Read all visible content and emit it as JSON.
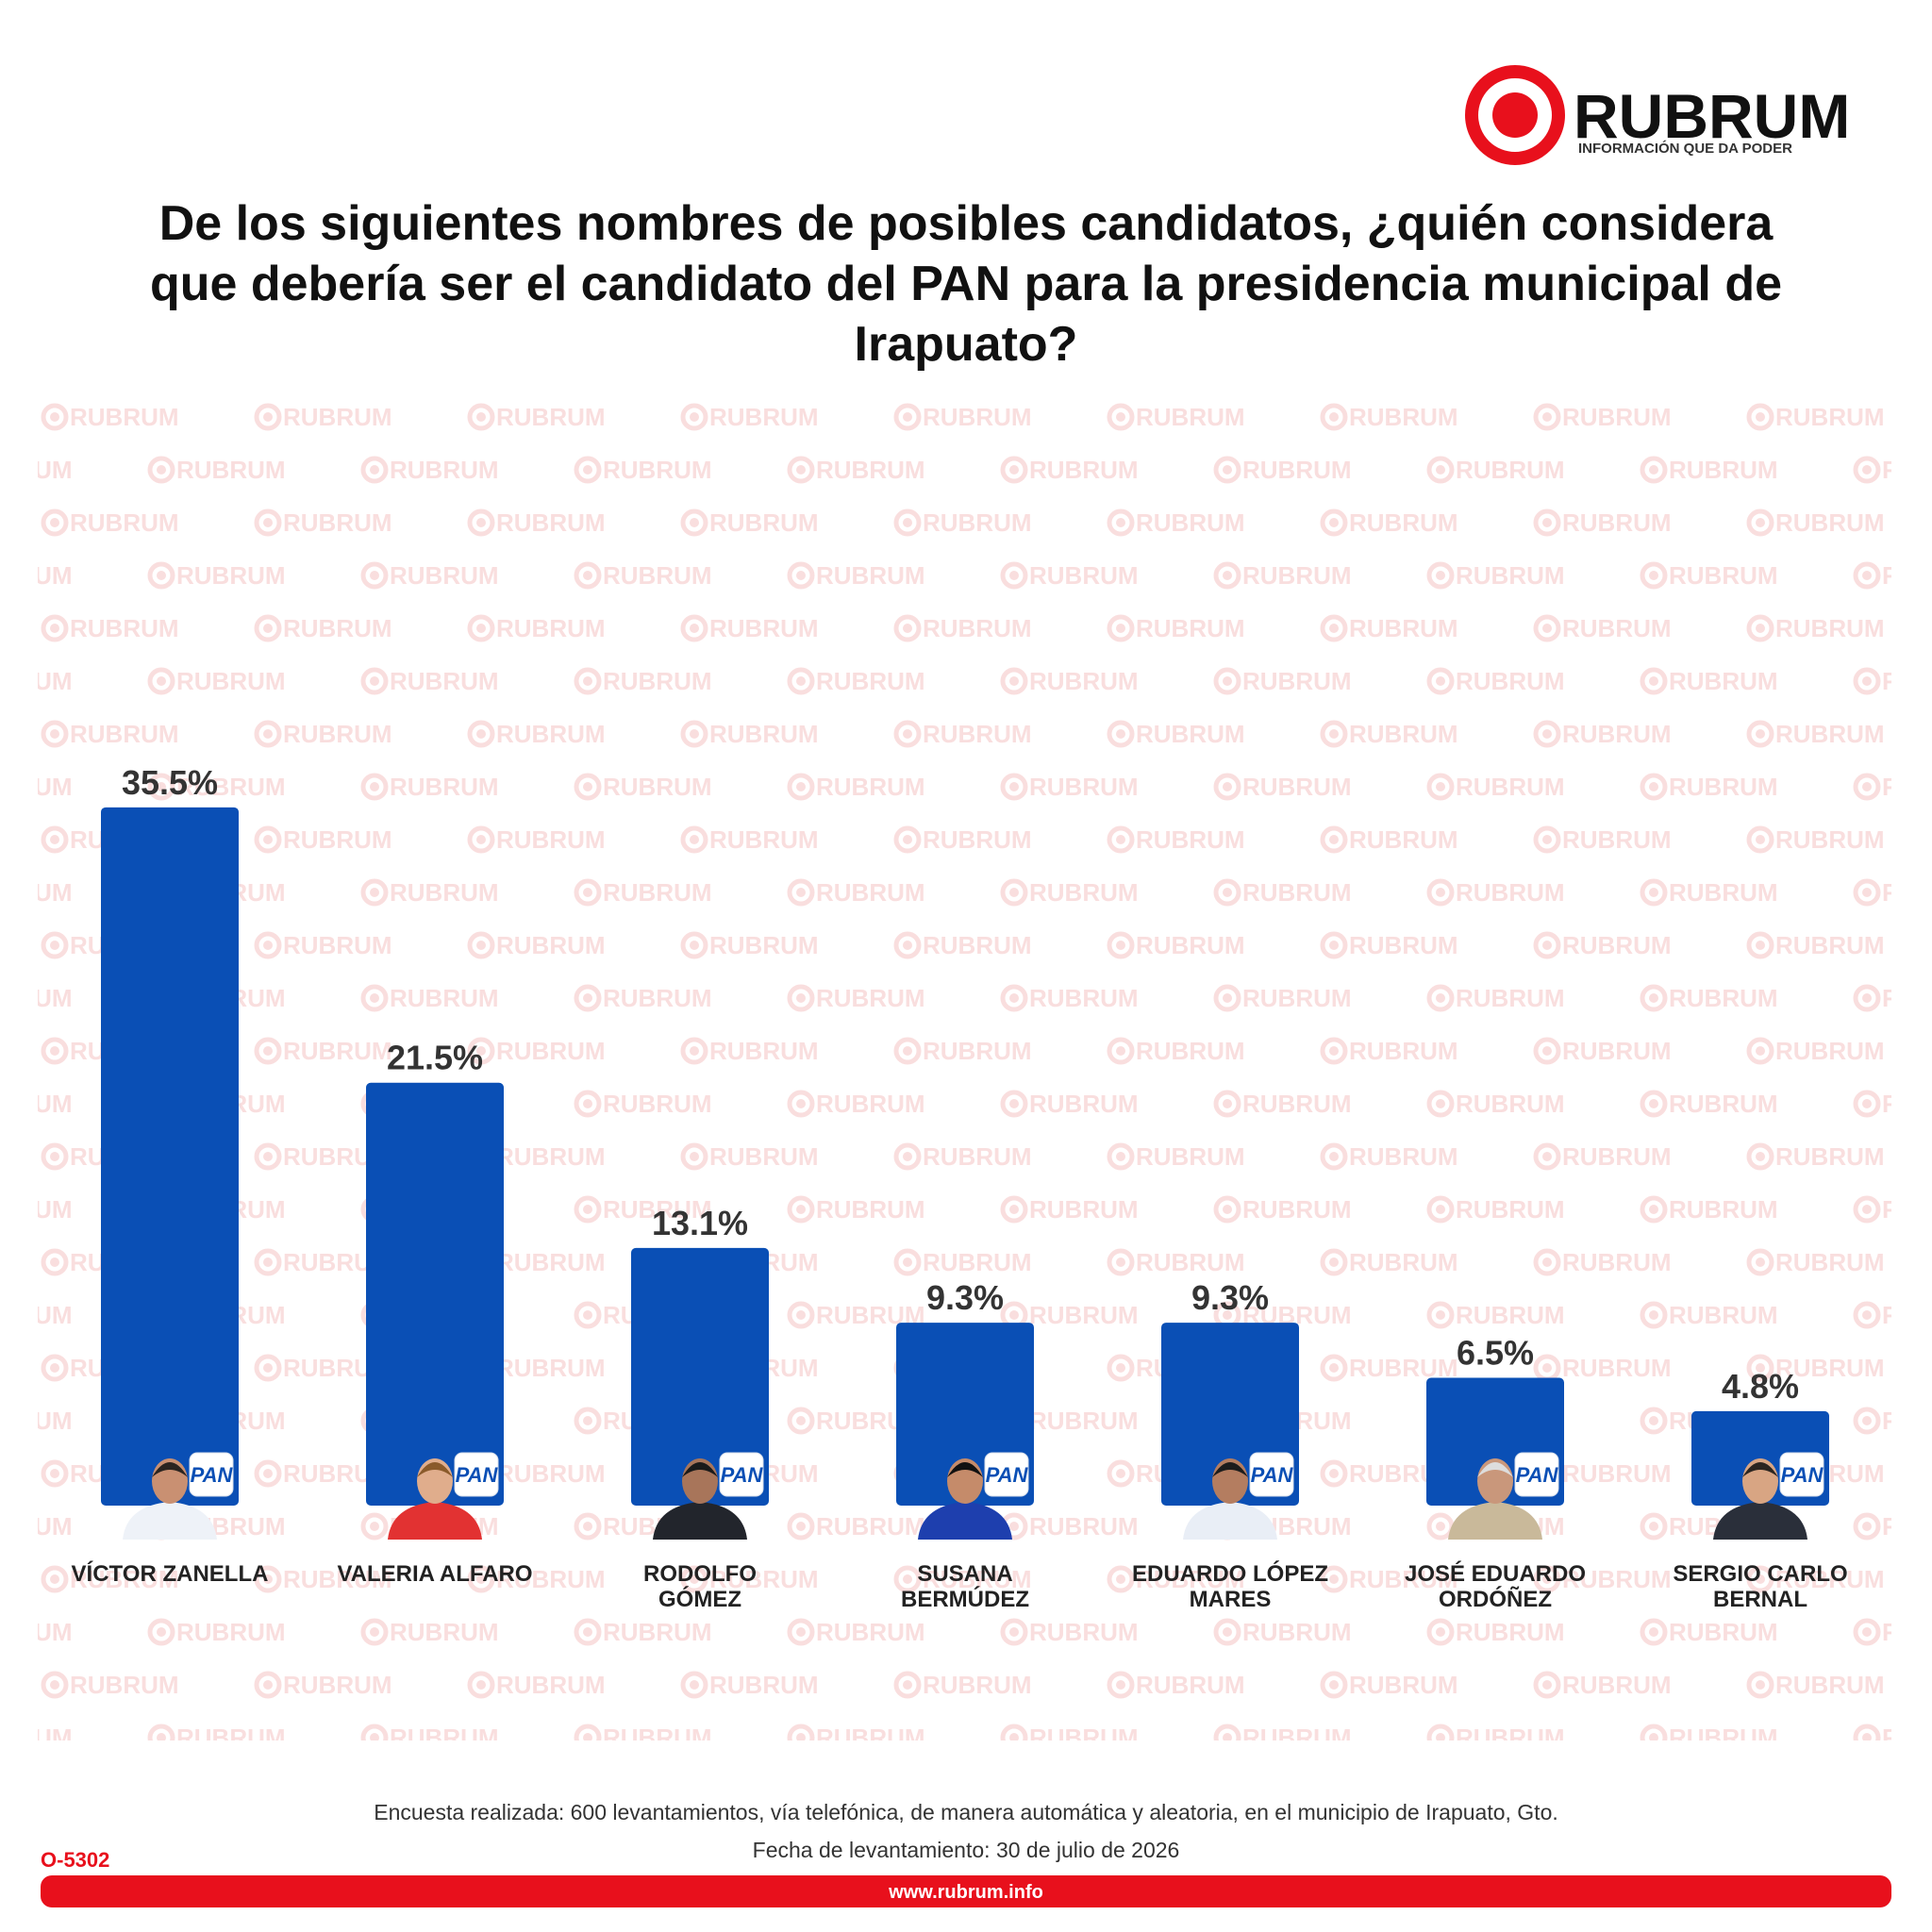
{
  "logo": {
    "name": "RUBRUM",
    "tagline": "INFORMACIÓN QUE DA PODER"
  },
  "chart_data": {
    "type": "bar",
    "title": "De los siguientes nombres de posibles candidatos, ¿quién considera que debería ser el candidato del PAN para la presidencia municipal de Irapuato?",
    "categories": [
      "VÍCTOR ZANELLA",
      "VALERIA ALFARO",
      "RODOLFO\nGÓMEZ",
      "SUSANA\nBERMÚDEZ",
      "EDUARDO LÓPEZ\nMARES",
      "JOSÉ EDUARDO\nORDÓÑEZ",
      "SERGIO CARLO\nBERNAL"
    ],
    "values": [
      35.5,
      21.5,
      13.1,
      9.3,
      9.3,
      6.5,
      4.8
    ],
    "value_labels": [
      "35.5%",
      "21.5%",
      "13.1%",
      "9.3%",
      "9.3%",
      "6.5%",
      "4.8%"
    ],
    "color": "#0a4fb5",
    "badge": "PAN"
  },
  "footer": {
    "note": "Encuesta realizada: 600 levantamientos, vía telefónica, de manera automática y aleatoria, en el municipio de Irapuato, Gto.",
    "date": "Fecha de levantamiento: 30 de julio de 2026",
    "code": "O-5302",
    "url": "www.rubrum.info"
  }
}
